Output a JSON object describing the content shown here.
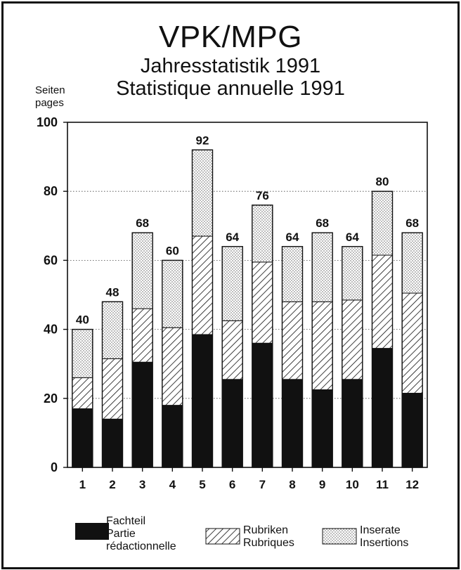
{
  "header": {
    "title": "VPK/MPG",
    "subtitle_de": "Jahresstatistik 1991",
    "subtitle_fr": "Statistique annuelle 1991"
  },
  "axis": {
    "ylabel_de": "Seiten",
    "ylabel_fr": "pages"
  },
  "legend": {
    "fachteil_de": "Fachteil",
    "fachteil_fr1": "Partie",
    "fachteil_fr2": "rédactionnelle",
    "rubriken_de": "Rubriken",
    "rubriken_fr": "Rubriques",
    "inserate_de": "Inserate",
    "inserate_fr": "Insertions"
  },
  "chart_data": {
    "type": "bar",
    "stacked": true,
    "title": "VPK/MPG",
    "subtitle": "Jahresstatistik 1991 / Statistique annuelle 1991",
    "ylabel": "Seiten / pages",
    "ylim": [
      0,
      100
    ],
    "yticks": [
      0,
      20,
      40,
      60,
      80,
      100
    ],
    "grid": "horizontal dotted",
    "legend_position": "bottom",
    "categories": [
      "1",
      "2",
      "3",
      "4",
      "5",
      "6",
      "7",
      "8",
      "9",
      "10",
      "11",
      "12"
    ],
    "totals": [
      40,
      48,
      68,
      60,
      92,
      64,
      76,
      64,
      68,
      64,
      80,
      68
    ],
    "series": [
      {
        "name": "Fachteil / Partie rédactionnelle",
        "pattern": "solid",
        "color": "#111111",
        "values": [
          17,
          14,
          30.5,
          18,
          38.5,
          25.5,
          36,
          25.5,
          22.5,
          25.5,
          34.5,
          21.5
        ]
      },
      {
        "name": "Rubriken / Rubriques",
        "pattern": "hatched",
        "values": [
          9,
          17.5,
          15.5,
          22.5,
          28.5,
          17,
          23.5,
          22.5,
          25.5,
          23,
          27,
          29
        ]
      },
      {
        "name": "Inserate / Insertions",
        "pattern": "dotted",
        "values": [
          14,
          16.5,
          22,
          19.5,
          25,
          21.5,
          16.5,
          16,
          20,
          15.5,
          18.5,
          17.5
        ]
      }
    ]
  }
}
